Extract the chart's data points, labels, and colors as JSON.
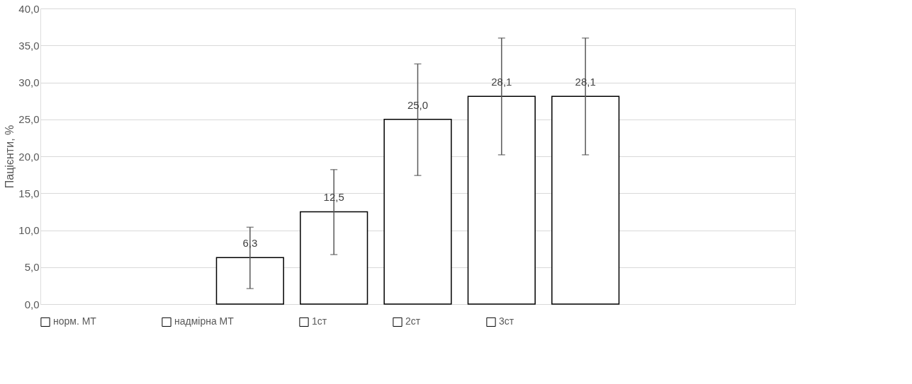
{
  "chart_data": {
    "type": "bar",
    "ylabel": "Пацієнти, %",
    "categories": [
      null
    ],
    "series": [
      {
        "name": "норм. МТ",
        "color": "#ffffff",
        "values": [
          6.3
        ],
        "errors": [
          [
            2.1,
            10.4
          ]
        ],
        "value_labels": [
          "6,3"
        ]
      },
      {
        "name": "надмірна МТ",
        "color": "#ffffff",
        "values": [
          12.5
        ],
        "errors": [
          [
            6.7,
            18.2
          ]
        ],
        "value_labels": [
          "12,5"
        ]
      },
      {
        "name": "1ст",
        "color": "#ffffff",
        "values": [
          25.0
        ],
        "errors": [
          [
            17.4,
            32.5
          ]
        ],
        "value_labels": [
          "25,0"
        ]
      },
      {
        "name": "2ст",
        "color": "#ffffff",
        "values": [
          28.1
        ],
        "errors": [
          [
            20.2,
            36.0
          ]
        ],
        "value_labels": [
          "28,1"
        ]
      },
      {
        "name": "3ст",
        "color": "#ffffff",
        "values": [
          28.1
        ],
        "errors": [
          [
            20.2,
            36.0
          ]
        ],
        "value_labels": [
          "28,1"
        ]
      }
    ],
    "ylim": [
      0,
      40
    ],
    "yticks": [
      {
        "value": 0,
        "label": "0,0"
      },
      {
        "value": 5,
        "label": "5,0"
      },
      {
        "value": 10,
        "label": "10,0"
      },
      {
        "value": 15,
        "label": "15,0"
      },
      {
        "value": 20,
        "label": "20,0"
      },
      {
        "value": 25,
        "label": "25,0"
      },
      {
        "value": 30,
        "label": "30,0"
      },
      {
        "value": 35,
        "label": "35,0"
      },
      {
        "value": 40,
        "label": "40,0"
      }
    ],
    "grid": "y",
    "legend": "bottom",
    "tick_labels": "y"
  }
}
